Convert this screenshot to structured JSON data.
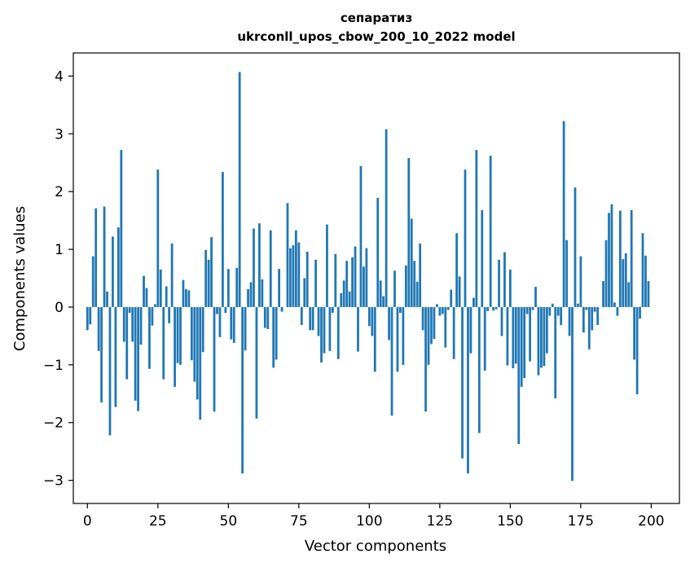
{
  "chart_data": {
    "type": "bar",
    "title": "сепаратиз",
    "subtitle": "ukrconll_upos_cbow_200_10_2022 model",
    "xlabel": "Vector components",
    "ylabel": "Components values",
    "xlim": [
      -5,
      210
    ],
    "ylim": [
      -3.4,
      4.4
    ],
    "xticks": [
      0,
      25,
      50,
      75,
      100,
      125,
      150,
      175,
      200
    ],
    "yticks": [
      -3,
      -2,
      -1,
      0,
      1,
      2,
      3,
      4
    ],
    "ytick_labels": [
      "−3",
      "−2",
      "−1",
      "0",
      "1",
      "2",
      "3",
      "4"
    ],
    "grid": false,
    "bar_color": "#1f77b4",
    "x": [
      0,
      1,
      2,
      3,
      4,
      5,
      6,
      7,
      8,
      9,
      10,
      11,
      12,
      13,
      14,
      15,
      16,
      17,
      18,
      19,
      20,
      21,
      22,
      23,
      24,
      25,
      26,
      27,
      28,
      29,
      30,
      31,
      32,
      33,
      34,
      35,
      36,
      37,
      38,
      39,
      40,
      41,
      42,
      43,
      44,
      45,
      46,
      47,
      48,
      49,
      50,
      51,
      52,
      53,
      54,
      55,
      56,
      57,
      58,
      59,
      60,
      61,
      62,
      63,
      64,
      65,
      66,
      67,
      68,
      69,
      70,
      71,
      72,
      73,
      74,
      75,
      76,
      77,
      78,
      79,
      80,
      81,
      82,
      83,
      84,
      85,
      86,
      87,
      88,
      89,
      90,
      91,
      92,
      93,
      94,
      95,
      96,
      97,
      98,
      99,
      100,
      101,
      102,
      103,
      104,
      105,
      106,
      107,
      108,
      109,
      110,
      111,
      112,
      113,
      114,
      115,
      116,
      117,
      118,
      119,
      120,
      121,
      122,
      123,
      124,
      125,
      126,
      127,
      128,
      129,
      130,
      131,
      132,
      133,
      134,
      135,
      136,
      137,
      138,
      139,
      140,
      141,
      142,
      143,
      144,
      145,
      146,
      147,
      148,
      149,
      150,
      151,
      152,
      153,
      154,
      155,
      156,
      157,
      158,
      159,
      160,
      161,
      162,
      163,
      164,
      165,
      166,
      167,
      168,
      169,
      170,
      171,
      172,
      173,
      174,
      175,
      176,
      177,
      178,
      179,
      180,
      181,
      182,
      183,
      184,
      185,
      186,
      187,
      188,
      189,
      190,
      191,
      192,
      193,
      194,
      195,
      196,
      197,
      198,
      199
    ],
    "values": [
      -0.4,
      -0.3,
      0.88,
      1.71,
      -0.76,
      -1.65,
      1.74,
      0.27,
      -2.22,
      1.22,
      -1.73,
      1.38,
      2.72,
      -0.6,
      -1.25,
      -0.1,
      -0.6,
      -1.62,
      -1.8,
      -0.65,
      0.54,
      0.33,
      -1.07,
      -0.32,
      0.05,
      2.38,
      0.65,
      -1.25,
      0.36,
      -0.28,
      1.1,
      -1.38,
      -0.97,
      -1.0,
      0.47,
      0.31,
      0.29,
      -0.92,
      -1.29,
      -1.6,
      -1.95,
      -0.78,
      0.99,
      0.82,
      1.21,
      -1.81,
      -0.12,
      -0.52,
      2.34,
      -0.1,
      0.66,
      -0.56,
      -0.62,
      0.68,
      4.07,
      -2.88,
      -0.75,
      0.31,
      0.43,
      1.36,
      -1.93,
      1.45,
      0.48,
      -0.36,
      -0.38,
      1.33,
      -1.05,
      -0.91,
      0.66,
      -0.08,
      0.0,
      1.8,
      1.02,
      1.07,
      1.33,
      1.12,
      -0.31,
      0.5,
      0.96,
      -0.4,
      -0.4,
      0.82,
      -0.5,
      -0.96,
      -0.8,
      1.43,
      -0.76,
      -0.1,
      0.92,
      -0.9,
      0.24,
      0.46,
      0.8,
      0.27,
      0.86,
      1.05,
      -0.77,
      2.44,
      0.7,
      1.02,
      -0.33,
      -0.5,
      -1.12,
      1.89,
      0.46,
      0.19,
      3.08,
      -0.57,
      -1.88,
      0.63,
      -1.12,
      -0.1,
      -1.0,
      0.72,
      2.58,
      1.53,
      0.8,
      0.44,
      1.1,
      -0.4,
      -1.81,
      -1.0,
      -0.64,
      -0.55,
      0.05,
      -0.15,
      -0.12,
      -0.7,
      -0.05,
      0.3,
      -0.9,
      1.28,
      0.53,
      -2.62,
      2.38,
      -2.88,
      -0.8,
      0.16,
      2.72,
      -2.18,
      1.68,
      -1.1,
      -0.07,
      2.62,
      -0.06,
      -0.04,
      0.82,
      -0.5,
      0.95,
      -1.01,
      0.65,
      -1.06,
      -0.98,
      -2.37,
      -1.38,
      -1.23,
      -0.12,
      -0.94,
      -0.05,
      0.35,
      -1.18,
      -1.05,
      -1.02,
      -0.8,
      -0.15,
      0.06,
      -1.58,
      -0.15,
      -0.31,
      3.22,
      1.16,
      -0.5,
      -3.01,
      2.07,
      0.06,
      0.88,
      -0.44,
      -0.05,
      -0.73,
      -0.4,
      -0.08,
      -0.31,
      0.0,
      0.45,
      1.16,
      1.63,
      1.78,
      0.08,
      -0.15,
      1.67,
      0.83,
      0.93,
      0.43,
      1.68,
      -0.91,
      -1.51,
      -0.2,
      1.28,
      0.89,
      0.45
    ]
  }
}
